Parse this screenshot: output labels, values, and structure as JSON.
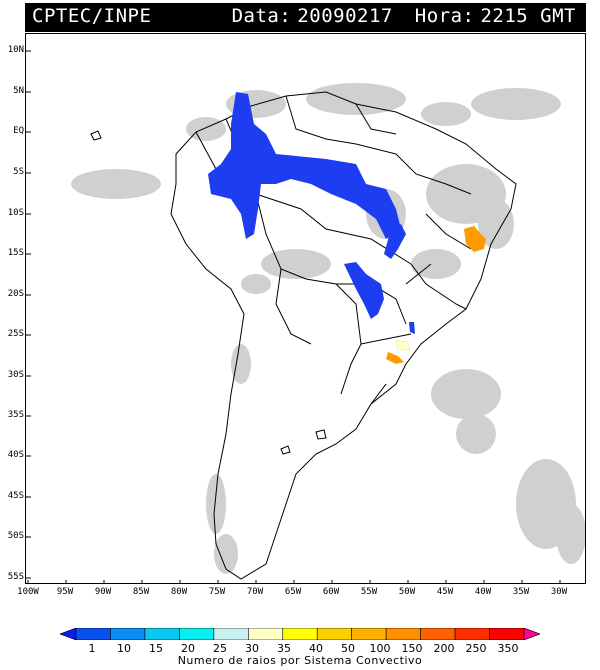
{
  "header": {
    "agency": "CPTEC/INPE",
    "date_label": "Data:",
    "date_value": "20090217",
    "hour_label": "Hora:",
    "hour_value": "2215 GMT"
  },
  "axes": {
    "lat_labels": [
      "10N",
      "5N",
      "EQ",
      "5S",
      "10S",
      "15S",
      "20S",
      "25S",
      "30S",
      "35S",
      "40S",
      "45S",
      "50S",
      "55S"
    ],
    "lon_labels": [
      "100W",
      "95W",
      "90W",
      "85W",
      "80W",
      "75W",
      "70W",
      "65W",
      "60W",
      "55W",
      "50W",
      "45W",
      "40W",
      "35W",
      "30W"
    ]
  },
  "colorbar": {
    "labels": [
      "1",
      "10",
      "15",
      "20",
      "25",
      "30",
      "35",
      "40",
      "50",
      "100",
      "150",
      "200",
      "250",
      "350"
    ],
    "colors": [
      "#0a1ef0",
      "#0a50f0",
      "#0a8cf0",
      "#0ac8f0",
      "#0af0f0",
      "#c8f0f0",
      "#ffffc8",
      "#ffff00",
      "#ffd000",
      "#ffb000",
      "#ff9000",
      "#ff6000",
      "#ff3000",
      "#ff0000",
      "#ff0090"
    ],
    "caption": "Numero de raios por Sistema Convectivo"
  },
  "colors": {
    "cloud": "#c8c8c8",
    "low_count": "#1e3cf0",
    "high_count": "#ff9a00",
    "pale_count": "#ffffc8"
  }
}
